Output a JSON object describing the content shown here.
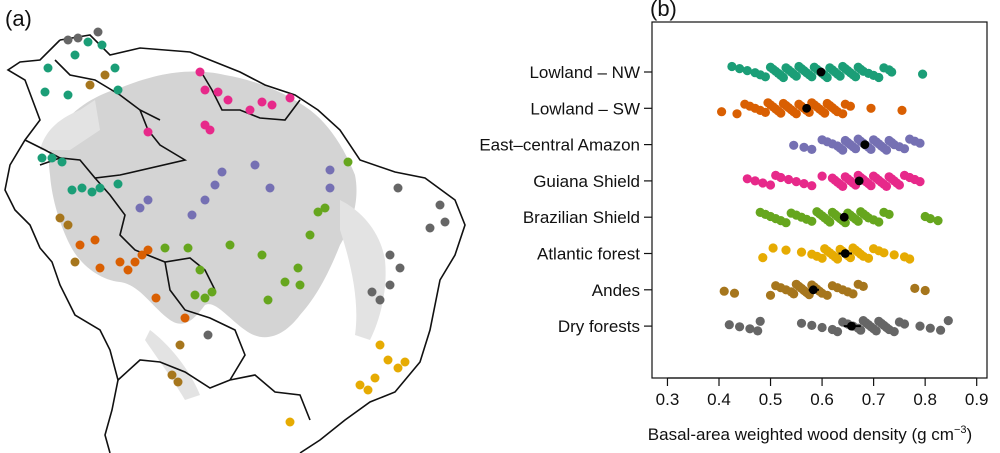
{
  "figure": {
    "panel_a_label": "(a)",
    "panel_b_label": "(b)"
  },
  "chart_data": [
    {
      "type": "map",
      "panel": "(a)",
      "description_free": true,
      "region_colors": {
        "Lowland - NW": "#1b9e77",
        "Lowland - SW": "#d95f02",
        "East-central Amazon": "#7570b3",
        "Guiana Shield": "#e7298a",
        "Brazilian Shield": "#66a61e",
        "Atlantic forest": "#e6ab02",
        "Andes": "#a6761d",
        "Dry forests": "#666666"
      }
    },
    {
      "type": "scatter",
      "panel": "(b)",
      "title": "",
      "xlabel": "Basal-area weighted wood density",
      "xlabel_unit_base": "(g cm",
      "xlabel_unit_exp": "−3",
      "xlabel_unit_close": ")",
      "xlim": [
        0.27,
        0.92
      ],
      "xticks": [
        0.3,
        0.4,
        0.5,
        0.6,
        0.7,
        0.8,
        0.9
      ],
      "xtick_labels": [
        "0.3",
        "0.4",
        "0.5",
        "0.6",
        "0.7",
        "0.8",
        "0.9"
      ],
      "categories": [
        "Lowland – NW",
        "Lowland – SW",
        "East–central Amazon",
        "Guiana Shield",
        "Brazilian Shield",
        "Atlantic forest",
        "Andes",
        "Dry forests"
      ],
      "series": [
        {
          "name": "Lowland – NW",
          "color": "#1b9e77",
          "mean": 0.598,
          "ci": [
            0.592,
            0.604
          ],
          "values": [
            0.425,
            0.44,
            0.455,
            0.47,
            0.48,
            0.49,
            0.5,
            0.505,
            0.51,
            0.515,
            0.52,
            0.525,
            0.53,
            0.535,
            0.54,
            0.545,
            0.55,
            0.555,
            0.56,
            0.565,
            0.57,
            0.575,
            0.58,
            0.585,
            0.59,
            0.595,
            0.6,
            0.605,
            0.61,
            0.615,
            0.62,
            0.625,
            0.63,
            0.635,
            0.64,
            0.645,
            0.65,
            0.655,
            0.66,
            0.665,
            0.67,
            0.675,
            0.68,
            0.69,
            0.7,
            0.71,
            0.72,
            0.73,
            0.735,
            0.795
          ]
        },
        {
          "name": "Lowland – SW",
          "color": "#d95f02",
          "mean": 0.57,
          "ci": [
            0.564,
            0.576
          ],
          "values": [
            0.405,
            0.435,
            0.45,
            0.46,
            0.47,
            0.48,
            0.49,
            0.495,
            0.5,
            0.505,
            0.51,
            0.515,
            0.52,
            0.525,
            0.53,
            0.535,
            0.54,
            0.545,
            0.55,
            0.555,
            0.56,
            0.565,
            0.57,
            0.575,
            0.58,
            0.585,
            0.59,
            0.595,
            0.6,
            0.605,
            0.61,
            0.615,
            0.62,
            0.625,
            0.63,
            0.64,
            0.645,
            0.655,
            0.695,
            0.755
          ]
        },
        {
          "name": "East–central Amazon",
          "color": "#7570b3",
          "mean": 0.683,
          "ci": [
            0.677,
            0.689
          ],
          "values": [
            0.545,
            0.565,
            0.58,
            0.6,
            0.61,
            0.62,
            0.63,
            0.635,
            0.64,
            0.645,
            0.65,
            0.655,
            0.66,
            0.665,
            0.67,
            0.675,
            0.68,
            0.685,
            0.69,
            0.695,
            0.7,
            0.705,
            0.71,
            0.715,
            0.72,
            0.725,
            0.73,
            0.735,
            0.74,
            0.75,
            0.76,
            0.77,
            0.78,
            0.79
          ]
        },
        {
          "name": "Guiana Shield",
          "color": "#e7298a",
          "mean": 0.672,
          "ci": [
            0.666,
            0.678
          ],
          "values": [
            0.455,
            0.47,
            0.485,
            0.5,
            0.51,
            0.52,
            0.535,
            0.55,
            0.565,
            0.58,
            0.6,
            0.62,
            0.625,
            0.63,
            0.635,
            0.64,
            0.645,
            0.65,
            0.655,
            0.66,
            0.665,
            0.67,
            0.675,
            0.68,
            0.685,
            0.69,
            0.695,
            0.7,
            0.705,
            0.71,
            0.715,
            0.72,
            0.725,
            0.73,
            0.735,
            0.74,
            0.745,
            0.75,
            0.76,
            0.77,
            0.78,
            0.79
          ]
        },
        {
          "name": "Brazilian Shield",
          "color": "#66a61e",
          "mean": 0.643,
          "ci": [
            0.637,
            0.65
          ],
          "values": [
            0.48,
            0.49,
            0.5,
            0.51,
            0.52,
            0.53,
            0.54,
            0.55,
            0.56,
            0.57,
            0.58,
            0.59,
            0.595,
            0.6,
            0.605,
            0.61,
            0.615,
            0.62,
            0.625,
            0.63,
            0.635,
            0.64,
            0.645,
            0.65,
            0.655,
            0.66,
            0.665,
            0.67,
            0.675,
            0.68,
            0.685,
            0.69,
            0.7,
            0.71,
            0.72,
            0.73,
            0.8,
            0.81,
            0.825
          ]
        },
        {
          "name": "Atlantic forest",
          "color": "#e6ab02",
          "mean": 0.645,
          "ci": [
            0.632,
            0.658
          ],
          "values": [
            0.485,
            0.505,
            0.53,
            0.56,
            0.58,
            0.59,
            0.6,
            0.605,
            0.61,
            0.615,
            0.62,
            0.625,
            0.63,
            0.635,
            0.64,
            0.645,
            0.65,
            0.655,
            0.66,
            0.665,
            0.67,
            0.675,
            0.68,
            0.69,
            0.7,
            0.71,
            0.72,
            0.74,
            0.76,
            0.77
          ]
        },
        {
          "name": "Andes",
          "color": "#a6761d",
          "mean": 0.583,
          "ci": [
            0.574,
            0.594
          ],
          "values": [
            0.41,
            0.43,
            0.5,
            0.51,
            0.52,
            0.53,
            0.54,
            0.545,
            0.55,
            0.555,
            0.56,
            0.565,
            0.57,
            0.575,
            0.58,
            0.585,
            0.59,
            0.595,
            0.6,
            0.61,
            0.62,
            0.63,
            0.64,
            0.65,
            0.66,
            0.67,
            0.68,
            0.78,
            0.8
          ]
        },
        {
          "name": "Dry forests",
          "color": "#666666",
          "mean": 0.657,
          "ci": [
            0.642,
            0.675
          ],
          "values": [
            0.42,
            0.44,
            0.46,
            0.475,
            0.48,
            0.56,
            0.58,
            0.6,
            0.62,
            0.63,
            0.64,
            0.65,
            0.66,
            0.67,
            0.675,
            0.68,
            0.685,
            0.69,
            0.695,
            0.7,
            0.705,
            0.71,
            0.715,
            0.72,
            0.725,
            0.73,
            0.74,
            0.75,
            0.76,
            0.79,
            0.81,
            0.83,
            0.845
          ]
        }
      ]
    }
  ]
}
